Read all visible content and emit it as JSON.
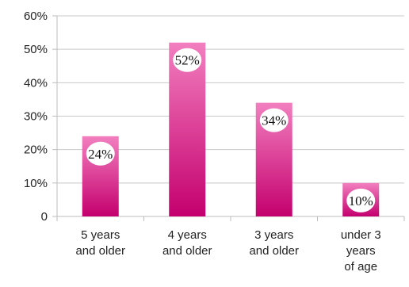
{
  "chart_data": {
    "type": "bar",
    "title": "",
    "xlabel": "",
    "ylabel": "",
    "categories": [
      [
        "5 years",
        "and older"
      ],
      [
        "4 years",
        "and older"
      ],
      [
        "3 years",
        "and older"
      ],
      [
        "under 3",
        "years",
        "of age"
      ]
    ],
    "values": [
      24,
      52,
      34,
      10
    ],
    "data_labels": [
      "24%",
      "52%",
      "34%",
      "10%"
    ],
    "ylim": [
      0,
      60
    ],
    "yticks": [
      0,
      10,
      20,
      30,
      40,
      50,
      60
    ],
    "ytick_labels": [
      "0",
      "10%",
      "20%",
      "30%",
      "40%",
      "50%",
      "60%"
    ],
    "grid": true,
    "legend": "none",
    "colors": {
      "bar_top": "#f27fbf",
      "bar_bottom": "#c4006e",
      "grid": "#c8c8c8",
      "axis": "#bdbdbd",
      "label_bubble": "#ffffff"
    }
  }
}
